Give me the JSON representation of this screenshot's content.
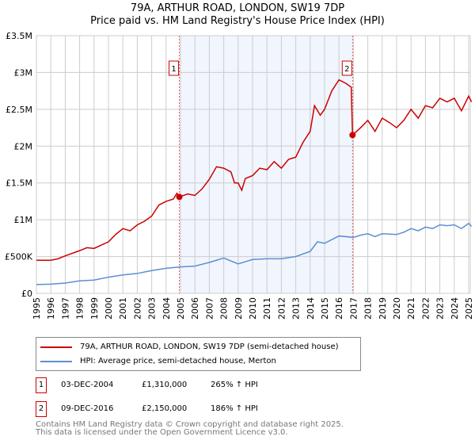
{
  "chart_data": {
    "type": "line",
    "title": "79A, ARTHUR ROAD, LONDON, SW19 7DP",
    "subtitle": "Price paid vs. HM Land Registry's House Price Index (HPI)",
    "xlim": [
      1995,
      2025.3
    ],
    "ylim": [
      0,
      3500000
    ],
    "x_ticks": [
      "1995",
      "1996",
      "1997",
      "1998",
      "1999",
      "2000",
      "2001",
      "2002",
      "2003",
      "2004",
      "2005",
      "2006",
      "2007",
      "2008",
      "2009",
      "2010",
      "2011",
      "2012",
      "2013",
      "2014",
      "2015",
      "2016",
      "2017",
      "2018",
      "2019",
      "2020",
      "2021",
      "2022",
      "2023",
      "2024",
      "2025"
    ],
    "y_ticks": [
      {
        "v": 0,
        "label": "£0"
      },
      {
        "v": 500000,
        "label": "£500K"
      },
      {
        "v": 1000000,
        "label": "£1M"
      },
      {
        "v": 1500000,
        "label": "£1.5M"
      },
      {
        "v": 2000000,
        "label": "£2M"
      },
      {
        "v": 2500000,
        "label": "£2.5M"
      },
      {
        "v": 3000000,
        "label": "£3M"
      },
      {
        "v": 3500000,
        "label": "£3.5M"
      }
    ],
    "grid": true,
    "shaded_range": [
      2004.92,
      2016.94
    ],
    "series": [
      {
        "name": "79A, ARTHUR ROAD, LONDON, SW19 7DP (semi-detached house)",
        "color": "#cc0000",
        "points": [
          [
            1995,
            450000
          ],
          [
            1996,
            450000
          ],
          [
            1996.5,
            470000
          ],
          [
            1997,
            510000
          ],
          [
            1998,
            580000
          ],
          [
            1998.5,
            620000
          ],
          [
            1999,
            610000
          ],
          [
            2000,
            700000
          ],
          [
            2000.5,
            800000
          ],
          [
            2001,
            880000
          ],
          [
            2001.5,
            850000
          ],
          [
            2002,
            930000
          ],
          [
            2002.5,
            980000
          ],
          [
            2003,
            1050000
          ],
          [
            2003.5,
            1200000
          ],
          [
            2004,
            1250000
          ],
          [
            2004.5,
            1280000
          ],
          [
            2004.75,
            1360000
          ],
          [
            2004.92,
            1310000
          ],
          [
            2005.5,
            1350000
          ],
          [
            2006,
            1330000
          ],
          [
            2006.5,
            1420000
          ],
          [
            2007,
            1550000
          ],
          [
            2007.5,
            1720000
          ],
          [
            2008,
            1700000
          ],
          [
            2008.5,
            1650000
          ],
          [
            2008.75,
            1500000
          ],
          [
            2009,
            1500000
          ],
          [
            2009.25,
            1400000
          ],
          [
            2009.5,
            1560000
          ],
          [
            2010,
            1600000
          ],
          [
            2010.5,
            1700000
          ],
          [
            2011,
            1680000
          ],
          [
            2011.5,
            1790000
          ],
          [
            2012,
            1700000
          ],
          [
            2012.5,
            1820000
          ],
          [
            2013,
            1850000
          ],
          [
            2013.5,
            2050000
          ],
          [
            2014,
            2200000
          ],
          [
            2014.3,
            2550000
          ],
          [
            2014.7,
            2420000
          ],
          [
            2015,
            2500000
          ],
          [
            2015.5,
            2750000
          ],
          [
            2016,
            2900000
          ],
          [
            2016.5,
            2850000
          ],
          [
            2016.85,
            2800000
          ],
          [
            2016.94,
            2150000
          ],
          [
            2017.5,
            2250000
          ],
          [
            2018,
            2350000
          ],
          [
            2018.5,
            2200000
          ],
          [
            2019,
            2380000
          ],
          [
            2019.5,
            2320000
          ],
          [
            2020,
            2250000
          ],
          [
            2020.5,
            2350000
          ],
          [
            2021,
            2500000
          ],
          [
            2021.5,
            2380000
          ],
          [
            2022,
            2550000
          ],
          [
            2022.5,
            2520000
          ],
          [
            2023,
            2650000
          ],
          [
            2023.5,
            2600000
          ],
          [
            2024,
            2650000
          ],
          [
            2024.5,
            2480000
          ],
          [
            2025,
            2680000
          ],
          [
            2025.2,
            2600000
          ]
        ]
      },
      {
        "name": "HPI: Average price, semi-detached house, Merton",
        "color": "#5b8fd4",
        "points": [
          [
            1995,
            120000
          ],
          [
            1996,
            125000
          ],
          [
            1997,
            140000
          ],
          [
            1998,
            170000
          ],
          [
            1999,
            180000
          ],
          [
            2000,
            220000
          ],
          [
            2001,
            250000
          ],
          [
            2002,
            270000
          ],
          [
            2003,
            310000
          ],
          [
            2004,
            340000
          ],
          [
            2005,
            360000
          ],
          [
            2006,
            370000
          ],
          [
            2007,
            420000
          ],
          [
            2008,
            480000
          ],
          [
            2009,
            400000
          ],
          [
            2009.5,
            430000
          ],
          [
            2010,
            460000
          ],
          [
            2011,
            470000
          ],
          [
            2012,
            470000
          ],
          [
            2013,
            500000
          ],
          [
            2014,
            570000
          ],
          [
            2014.5,
            700000
          ],
          [
            2015,
            680000
          ],
          [
            2016,
            780000
          ],
          [
            2017,
            760000
          ],
          [
            2017.5,
            790000
          ],
          [
            2018,
            810000
          ],
          [
            2018.5,
            770000
          ],
          [
            2019,
            810000
          ],
          [
            2020,
            800000
          ],
          [
            2020.5,
            830000
          ],
          [
            2021,
            880000
          ],
          [
            2021.5,
            850000
          ],
          [
            2022,
            900000
          ],
          [
            2022.5,
            880000
          ],
          [
            2023,
            930000
          ],
          [
            2023.5,
            920000
          ],
          [
            2024,
            930000
          ],
          [
            2024.5,
            880000
          ],
          [
            2025,
            950000
          ],
          [
            2025.2,
            910000
          ]
        ]
      }
    ],
    "sales": [
      {
        "id": "1",
        "x": 2004.92,
        "price": 1310000,
        "date": "03-DEC-2004",
        "price_label": "£1,310,000",
        "hpi": "265% ↑ HPI"
      },
      {
        "id": "2",
        "x": 2016.94,
        "price": 2150000,
        "date": "09-DEC-2016",
        "price_label": "£2,150,000",
        "hpi": "186% ↑ HPI"
      }
    ]
  },
  "footer": {
    "line1": "Contains HM Land Registry data © Crown copyright and database right 2025.",
    "line2": "This data is licensed under the Open Government Licence v3.0."
  }
}
